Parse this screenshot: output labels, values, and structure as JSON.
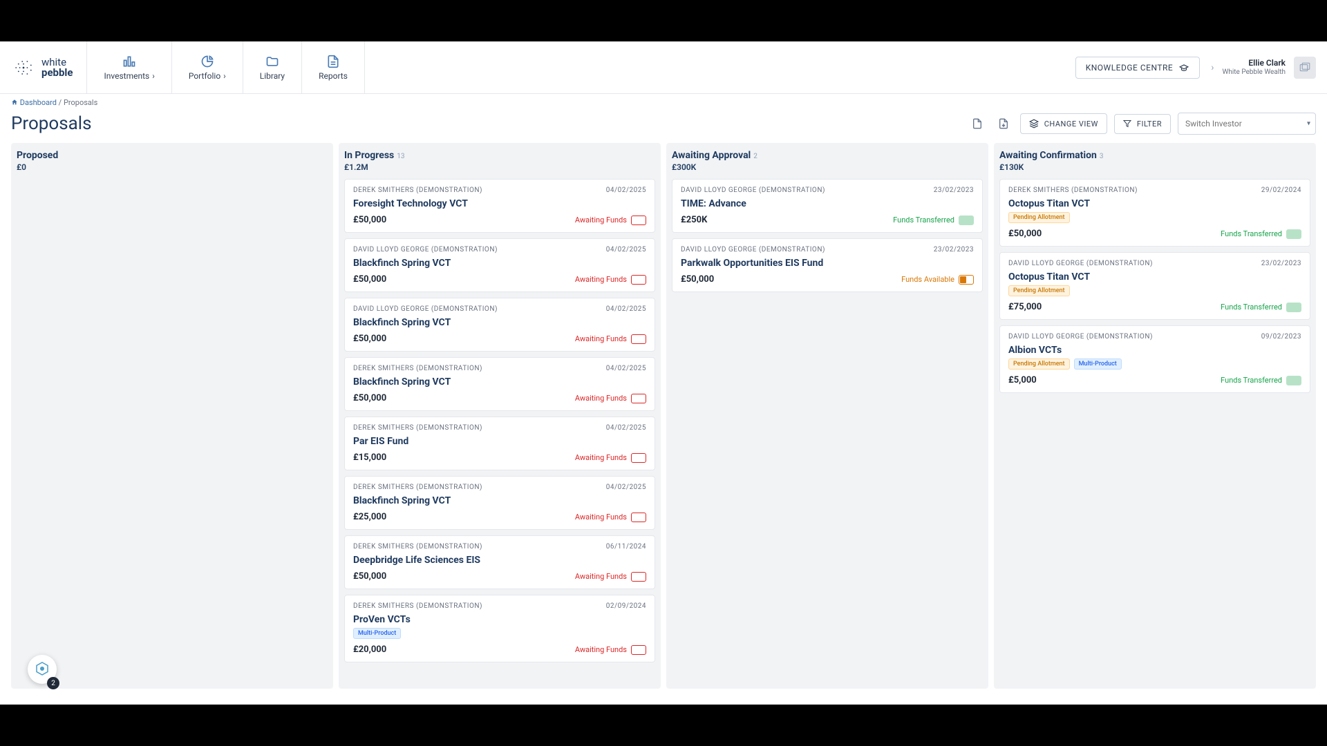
{
  "brand": {
    "line1": "white",
    "line2": "pebble"
  },
  "nav": [
    {
      "label": "Investments",
      "chev": true
    },
    {
      "label": "Portfolio",
      "chev": true
    },
    {
      "label": "Library",
      "chev": false
    },
    {
      "label": "Reports",
      "chev": false
    }
  ],
  "knowledge_centre": "KNOWLEDGE CENTRE",
  "user": {
    "name": "Ellie Clark",
    "org": "White Pebble Wealth"
  },
  "breadcrumb": {
    "home": "Dashboard",
    "current": "Proposals"
  },
  "page_title": "Proposals",
  "actions": {
    "change_view": "CHANGE VIEW",
    "filter": "FILTER",
    "switch_placeholder": "Switch Investor"
  },
  "float_count": "2",
  "columns": [
    {
      "title": "Proposed",
      "count": "",
      "subtotal": "£0",
      "cards": []
    },
    {
      "title": "In Progress",
      "count": "13",
      "subtotal": "£1.2M",
      "cards": [
        {
          "investor": "DEREK SMITHERS (DEMONSTRATION)",
          "date": "04/02/2025",
          "title": "Foresight Technology VCT",
          "amount": "£50,000",
          "status": "Awaiting Funds",
          "status_class": "st-red",
          "pill": "empty",
          "badges": []
        },
        {
          "investor": "DAVID LLOYD GEORGE (DEMONSTRATION)",
          "date": "04/02/2025",
          "title": "Blackfinch Spring VCT",
          "amount": "£50,000",
          "status": "Awaiting Funds",
          "status_class": "st-red",
          "pill": "empty",
          "badges": []
        },
        {
          "investor": "DAVID LLOYD GEORGE (DEMONSTRATION)",
          "date": "04/02/2025",
          "title": "Blackfinch Spring VCT",
          "amount": "£50,000",
          "status": "Awaiting Funds",
          "status_class": "st-red",
          "pill": "empty",
          "badges": []
        },
        {
          "investor": "DEREK SMITHERS (DEMONSTRATION)",
          "date": "04/02/2025",
          "title": "Blackfinch Spring VCT",
          "amount": "£50,000",
          "status": "Awaiting Funds",
          "status_class": "st-red",
          "pill": "empty",
          "badges": []
        },
        {
          "investor": "DEREK SMITHERS (DEMONSTRATION)",
          "date": "04/02/2025",
          "title": "Par EIS Fund",
          "amount": "£15,000",
          "status": "Awaiting Funds",
          "status_class": "st-red",
          "pill": "empty",
          "badges": []
        },
        {
          "investor": "DEREK SMITHERS (DEMONSTRATION)",
          "date": "04/02/2025",
          "title": "Blackfinch Spring VCT",
          "amount": "£25,000",
          "status": "Awaiting Funds",
          "status_class": "st-red",
          "pill": "empty",
          "badges": []
        },
        {
          "investor": "DEREK SMITHERS (DEMONSTRATION)",
          "date": "06/11/2024",
          "title": "Deepbridge Life Sciences EIS",
          "amount": "£50,000",
          "status": "Awaiting Funds",
          "status_class": "st-red",
          "pill": "empty",
          "badges": []
        },
        {
          "investor": "DEREK SMITHERS (DEMONSTRATION)",
          "date": "02/09/2024",
          "title": "ProVen VCTs",
          "amount": "£20,000",
          "status": "Awaiting Funds",
          "status_class": "st-red",
          "pill": "empty",
          "badges": [
            {
              "text": "Multi-Product",
              "cls": "badge-blue"
            }
          ]
        }
      ]
    },
    {
      "title": "Awaiting Approval",
      "count": "2",
      "subtotal": "£300K",
      "cards": [
        {
          "investor": "DAVID LLOYD GEORGE (DEMONSTRATION)",
          "date": "23/02/2023",
          "title": "TIME: Advance",
          "amount": "£250K",
          "status": "Funds Transferred",
          "status_class": "st-green",
          "pill": "full",
          "badges": []
        },
        {
          "investor": "DAVID LLOYD GEORGE (DEMONSTRATION)",
          "date": "23/02/2023",
          "title": "Parkwalk Opportunities EIS Fund",
          "amount": "£50,000",
          "status": "Funds Available",
          "status_class": "st-amber",
          "pill": "half",
          "badges": []
        }
      ]
    },
    {
      "title": "Awaiting Confirmation",
      "count": "3",
      "subtotal": "£130K",
      "cards": [
        {
          "investor": "DEREK SMITHERS (DEMONSTRATION)",
          "date": "29/02/2024",
          "title": "Octopus Titan VCT",
          "amount": "£50,000",
          "status": "Funds Transferred",
          "status_class": "st-green",
          "pill": "full",
          "badges": [
            {
              "text": "Pending Allotment",
              "cls": "badge-orange"
            }
          ]
        },
        {
          "investor": "DAVID LLOYD GEORGE (DEMONSTRATION)",
          "date": "23/02/2023",
          "title": "Octopus Titan VCT",
          "amount": "£75,000",
          "status": "Funds Transferred",
          "status_class": "st-green",
          "pill": "full",
          "badges": [
            {
              "text": "Pending Allotment",
              "cls": "badge-orange"
            }
          ]
        },
        {
          "investor": "DAVID LLOYD GEORGE (DEMONSTRATION)",
          "date": "09/02/2023",
          "title": "Albion VCTs",
          "amount": "£5,000",
          "status": "Funds Transferred",
          "status_class": "st-green",
          "pill": "full",
          "badges": [
            {
              "text": "Pending Allotment",
              "cls": "badge-orange"
            },
            {
              "text": "Multi-Product",
              "cls": "badge-blue"
            }
          ]
        }
      ]
    }
  ],
  "colors": {
    "accent": "#4a7bb5",
    "column_bg": "#f1f3f5",
    "text_dark": "#1f3a5f"
  }
}
